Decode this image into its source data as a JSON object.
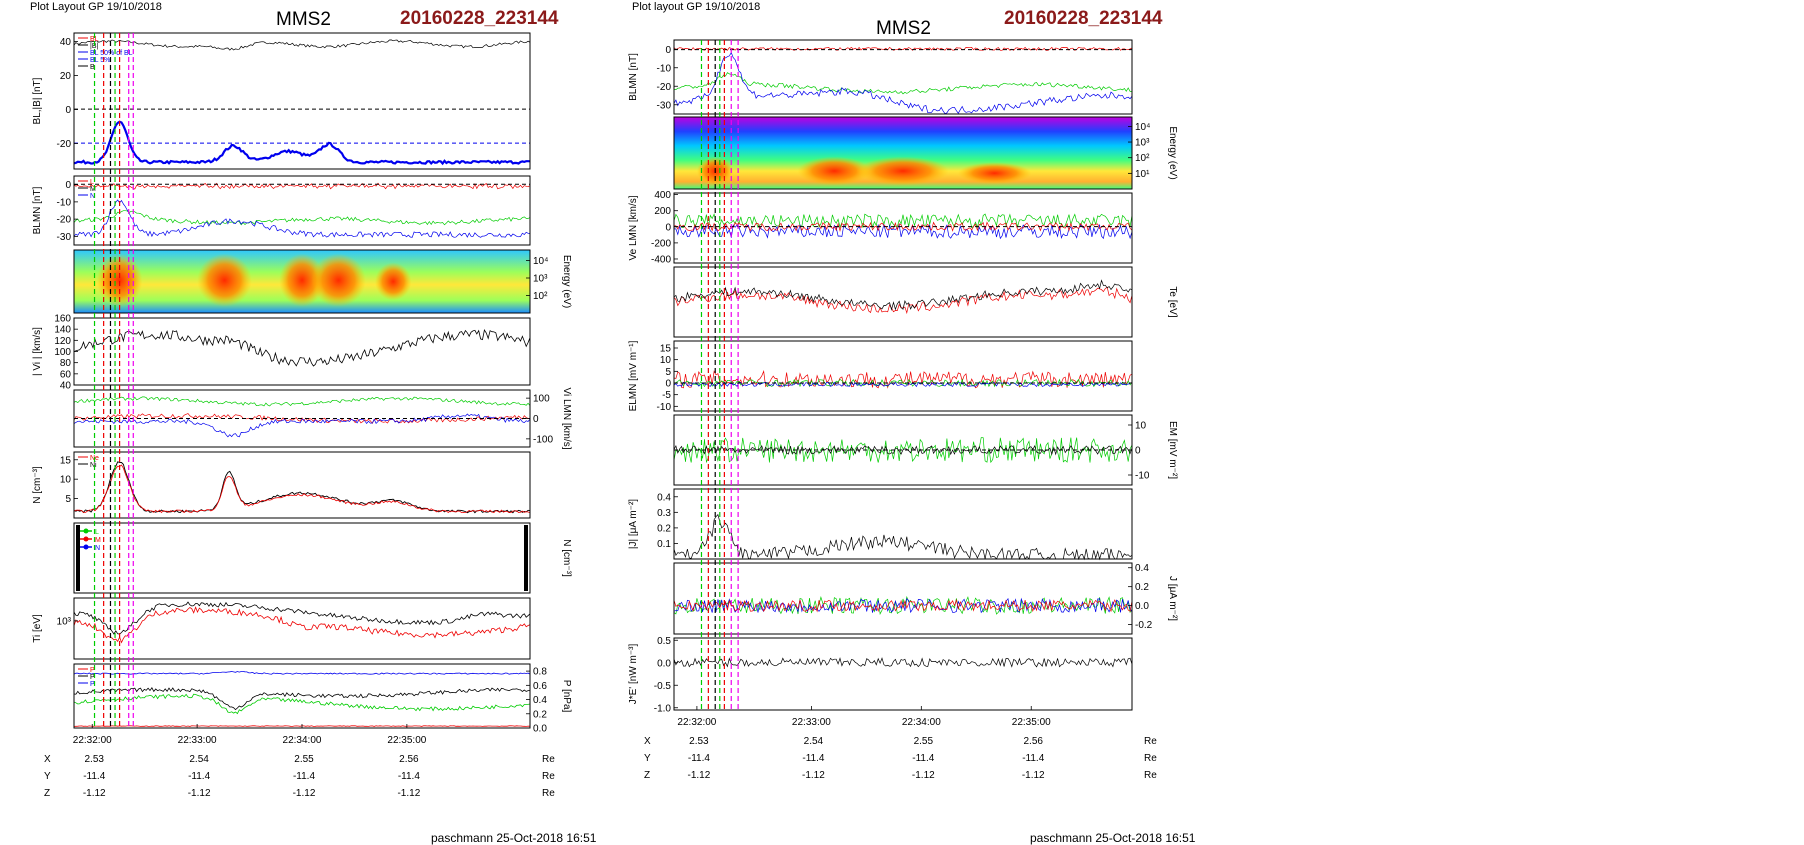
{
  "pages": [
    {
      "layout_label": "Plot Layout GP 19/10/2018",
      "spacecraft": "MMS2",
      "event_id": "20160228_223144",
      "footer": "paschmann 25-Oct-2018 16:51"
    },
    {
      "layout_label": "Plot layout GP 19/10/2018",
      "spacecraft": "MMS2",
      "event_id": "20160228_223144",
      "footer": "paschmann 25-Oct-2018 16:51"
    }
  ],
  "colors": {
    "event_id": "#8b1a1a",
    "red": "#ee0000",
    "green": "#00cc00",
    "blue": "#0000ee",
    "black": "#000000",
    "magenta": "#ee00ee",
    "cyan": "#00c8ff"
  },
  "chart_data": [
    {
      "type": "line",
      "figure": "left",
      "x_ticks": [
        "22:32:00",
        "22:33:00",
        "22:34:00",
        "22:35:00"
      ],
      "ephemeris": [
        {
          "label": "X",
          "values": [
            "2.53",
            "2.54",
            "2.55",
            "2.56"
          ],
          "unit": "Re"
        },
        {
          "label": "Y",
          "values": [
            "-11.4",
            "-11.4",
            "-11.4",
            "-11.4"
          ],
          "unit": "Re"
        },
        {
          "label": "Z",
          "values": [
            "-1.12",
            "-1.12",
            "-1.12",
            "-1.12"
          ],
          "unit": "Re"
        }
      ],
      "panels": [
        {
          "ylabel": "BL,|B| [nT]",
          "ylabel_side": "left",
          "ylim": [
            -35,
            45
          ],
          "yticks": [
            "40",
            "20",
            "0",
            "-20"
          ],
          "legend": [
            "BL",
            "|B|",
            "BL 50% of BL",
            "BL 5%",
            "B"
          ]
        },
        {
          "ylabel": "BLMN [nT]",
          "ylabel_side": "left",
          "ylim": [
            -35,
            5
          ],
          "yticks": [
            "0",
            "-10",
            "-20",
            "-30"
          ],
          "legend": [
            "L",
            "M",
            "N"
          ]
        },
        {
          "ylabel": "Energy (eV)",
          "ylabel_side": "right",
          "yticks": [
            "10⁴",
            "10³",
            "10²"
          ],
          "spectrogram": true
        },
        {
          "ylabel": "| Vi | [km/s]",
          "ylabel_side": "left",
          "ylim": [
            40,
            160
          ],
          "yticks": [
            "160",
            "140",
            "120",
            "100",
            "80",
            "60",
            "40"
          ]
        },
        {
          "ylabel": "Vi LMN [km/s]",
          "ylabel_side": "right",
          "ylim": [
            -140,
            140
          ],
          "yticks": [
            "100",
            "0",
            "-100"
          ]
        },
        {
          "ylabel": "N [cm⁻³]",
          "ylabel_side": "left",
          "ylim": [
            0,
            17
          ],
          "yticks": [
            "15",
            "10",
            "5"
          ],
          "legend": [
            "Ne",
            "Ni"
          ]
        },
        {
          "ylabel": "N [cm⁻³]",
          "ylabel_side": "right",
          "empty": true,
          "legend": [
            "L",
            "M",
            "N"
          ]
        },
        {
          "ylabel": "Ti [eV]",
          "ylabel_side": "left",
          "yticks": [
            "10³"
          ]
        },
        {
          "ylabel": "P [nPa]",
          "ylabel_side": "right",
          "ylim": [
            0,
            0.9
          ],
          "yticks": [
            "0.8",
            "0.6",
            "0.4",
            "0.2",
            "0.0"
          ],
          "legend": [
            "P",
            "P",
            "P"
          ]
        }
      ]
    },
    {
      "type": "line",
      "figure": "right",
      "x_ticks": [
        "22:32:00",
        "22:33:00",
        "22:34:00",
        "22:35:00"
      ],
      "ephemeris": [
        {
          "label": "X",
          "values": [
            "2.53",
            "2.54",
            "2.55",
            "2.56"
          ],
          "unit": "Re"
        },
        {
          "label": "Y",
          "values": [
            "-11.4",
            "-11.4",
            "-11.4",
            "-11.4"
          ],
          "unit": "Re"
        },
        {
          "label": "Z",
          "values": [
            "-1.12",
            "-1.12",
            "-1.12",
            "-1.12"
          ],
          "unit": "Re"
        }
      ],
      "panels": [
        {
          "ylabel": "BLMN [nT]",
          "ylabel_side": "left",
          "ylim": [
            -35,
            5
          ],
          "yticks": [
            "0",
            "-10",
            "-20",
            "-30"
          ]
        },
        {
          "ylabel": "Energy (eV)",
          "ylabel_side": "right",
          "yticks": [
            "10⁴",
            "10³",
            "10²",
            "10¹"
          ],
          "spectrogram": true
        },
        {
          "ylabel": "Ve LMN [km/s]",
          "ylabel_side": "left",
          "ylim": [
            -450,
            420
          ],
          "yticks": [
            "400",
            "200",
            "0",
            "-200",
            "-400"
          ]
        },
        {
          "ylabel": "Te [eV]",
          "ylabel_side": "right"
        },
        {
          "ylabel": "ELMN [mV m⁻¹]",
          "ylabel_side": "left",
          "ylim": [
            -12,
            18
          ],
          "yticks": [
            "15",
            "10",
            "5",
            "0",
            "-5",
            "-10"
          ]
        },
        {
          "ylabel": "EM [mV m⁻²]",
          "ylabel_side": "right",
          "ylim": [
            -14,
            14
          ],
          "yticks": [
            "10",
            "0",
            "-10"
          ]
        },
        {
          "ylabel": "|J| [μA m⁻²]",
          "ylabel_side": "left",
          "ylim": [
            0,
            0.45
          ],
          "yticks": [
            "0.4",
            "0.3",
            "0.2",
            "0.1"
          ]
        },
        {
          "ylabel": "J [μA m⁻²]",
          "ylabel_side": "right",
          "ylim": [
            -0.3,
            0.45
          ],
          "yticks": [
            "0.4",
            "0.2",
            "0.0",
            "-0.2"
          ]
        },
        {
          "ylabel": "J*E' [nW m⁻³]",
          "ylabel_side": "left",
          "ylim": [
            -1.05,
            0.55
          ],
          "yticks": [
            "0.5",
            "0.0",
            "-0.5",
            "-1.0"
          ]
        }
      ]
    }
  ]
}
